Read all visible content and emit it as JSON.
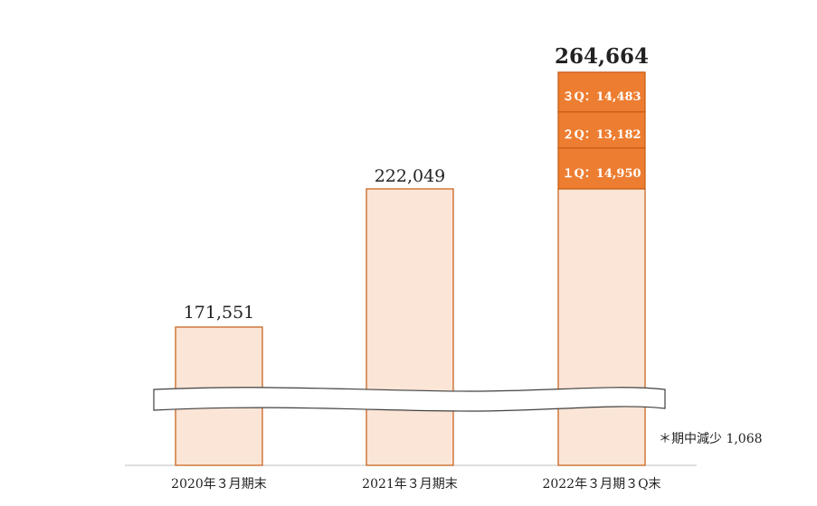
{
  "chart_data": {
    "type": "bar",
    "categories": [
      "2020年３月期末",
      "2021年３月期末",
      "2022年３月期３Q末"
    ],
    "totals": [
      "171,551",
      "222,049",
      "264,664"
    ],
    "values": [
      171551,
      222049,
      264664
    ],
    "segments": [
      {
        "label": "１Q：14,950",
        "value": 14950
      },
      {
        "label": "２Q：13,182",
        "value": 13182
      },
      {
        "label": "３Q：14,483",
        "value": 14483
      }
    ],
    "axis_break": true,
    "note": "＊期中減少 1,068",
    "colors": {
      "base_fill": "#fbe5d6",
      "bar_stroke": "#c55a11",
      "segment_fill": "#ed7d31"
    }
  }
}
